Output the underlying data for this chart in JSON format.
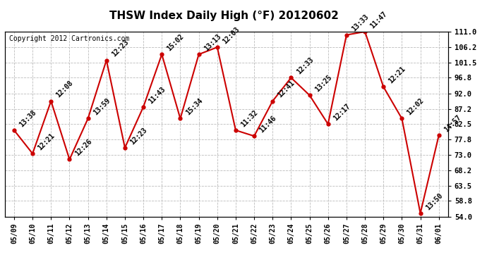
{
  "title": "THSW Index Daily High (°F) 20120602",
  "copyright": "Copyright 2012 Cartronics.com",
  "x_labels": [
    "05/09",
    "05/10",
    "05/11",
    "05/12",
    "05/13",
    "05/14",
    "05/15",
    "05/16",
    "05/17",
    "05/18",
    "05/19",
    "05/20",
    "05/21",
    "05/22",
    "05/23",
    "05/24",
    "05/25",
    "05/26",
    "05/27",
    "05/28",
    "05/29",
    "05/30",
    "05/31",
    "06/01"
  ],
  "y_values": [
    80.6,
    73.4,
    89.6,
    71.6,
    84.2,
    102.2,
    75.2,
    87.8,
    104.0,
    84.2,
    104.0,
    106.2,
    80.6,
    78.8,
    89.6,
    96.8,
    91.4,
    82.5,
    110.0,
    111.0,
    94.0,
    84.2,
    55.0,
    79.0
  ],
  "time_labels": [
    "13:38",
    "12:21",
    "12:08",
    "12:26",
    "13:59",
    "12:23",
    "12:23",
    "11:43",
    "15:02",
    "15:34",
    "13:13",
    "12:03",
    "11:32",
    "11:46",
    "12:41",
    "12:33",
    "13:25",
    "12:17",
    "13:33",
    "11:47",
    "12:21",
    "12:02",
    "13:50",
    "14:57"
  ],
  "y_ticks": [
    54.0,
    58.8,
    63.5,
    68.2,
    73.0,
    77.8,
    82.5,
    87.2,
    92.0,
    96.8,
    101.5,
    106.2,
    111.0
  ],
  "y_tick_labels": [
    "54.0",
    "58.8",
    "63.5",
    "68.2",
    "73.0",
    "77.8",
    "82.5",
    "87.2",
    "92.0",
    "96.8",
    "101.5",
    "106.2",
    "111.0"
  ],
  "y_min": 54.0,
  "y_max": 111.0,
  "line_color": "#cc0000",
  "marker_color": "#cc0000",
  "bg_color": "#ffffff",
  "grid_color": "#bbbbbb",
  "title_fontsize": 11,
  "copyright_fontsize": 7,
  "label_fontsize": 7
}
